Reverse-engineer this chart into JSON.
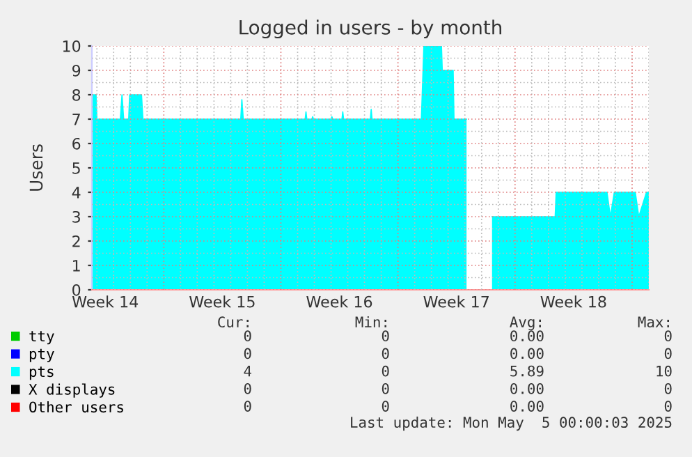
{
  "chart_data": {
    "type": "area",
    "title": "Logged in users - by month",
    "ylabel": "Users",
    "xlim": [
      "2025-04-01T16:48",
      "2025-05-05T00:00"
    ],
    "xticks": [
      {
        "value": "2025-04-02T12:00",
        "label": "Week 14"
      },
      {
        "value": "2025-04-09T12:00",
        "label": "Week 15"
      },
      {
        "value": "2025-04-16T12:00",
        "label": "Week 16"
      },
      {
        "value": "2025-04-23T12:00",
        "label": "Week 17"
      },
      {
        "value": "2025-04-30T12:00",
        "label": "Week 18"
      }
    ],
    "ylim": [
      0,
      10
    ],
    "yticks": [
      0,
      1,
      2,
      3,
      4,
      5,
      6,
      7,
      8,
      9,
      10
    ],
    "grid": true,
    "legend": "bottom",
    "series": [
      {
        "name": "tty",
        "color": "#00cc00"
      },
      {
        "name": "pty",
        "color": "#0000ff"
      },
      {
        "name": "pts",
        "color": "#00ffff",
        "x": [
          "2025-04-01T16:48",
          "2025-04-01T22:48",
          "2025-04-02T00:00",
          "2025-04-03T09:36",
          "2025-04-03T12:00",
          "2025-04-03T14:24",
          "2025-04-03T21:36",
          "2025-04-03T23:00",
          "2025-04-04T16:00",
          "2025-04-04T18:00",
          "2025-04-10T14:24",
          "2025-04-10T16:00",
          "2025-04-10T18:00",
          "2025-04-14T10:48",
          "2025-04-14T12:00",
          "2025-04-14T13:12",
          "2025-04-14T20:24",
          "2025-04-14T21:36",
          "2025-04-14T22:48",
          "2025-04-16T00:00",
          "2025-04-16T01:12",
          "2025-04-16T02:24",
          "2025-04-16T15:36",
          "2025-04-16T16:48",
          "2025-04-16T18:00",
          "2025-04-18T08:24",
          "2025-04-18T09:36",
          "2025-04-18T10:48",
          "2025-04-21T09:36",
          "2025-04-21T13:12",
          "2025-04-22T14:24",
          "2025-04-22T15:36",
          "2025-04-23T07:12",
          "2025-04-23T08:24",
          "2025-04-24T02:24",
          "2025-04-24T03:36",
          "2025-04-25T15:00",
          "2025-04-29T09:36",
          "2025-04-29T11:00",
          "2025-05-02T12:00",
          "2025-05-02T16:48",
          "2025-05-02T22:30",
          "2025-05-04T04:34",
          "2025-05-04T09:36",
          "2025-05-04T20:38",
          "2025-05-05T00:00"
        ],
        "values": [
          8,
          8,
          7,
          7,
          8,
          7,
          7,
          8,
          8,
          7,
          7,
          7.8,
          7,
          7,
          7.3,
          7,
          7,
          7.1,
          7,
          7,
          7.1,
          7,
          7,
          7.3,
          7,
          7,
          7.4,
          7,
          7,
          10,
          10,
          9,
          9,
          7,
          7,
          null,
          3,
          3,
          4,
          4,
          3,
          4,
          4,
          3,
          4,
          4
        ]
      },
      {
        "name": "X displays",
        "color": "#000000"
      },
      {
        "name": "Other users",
        "color": "#ff0000"
      }
    ],
    "annotations": [
      "Cur:",
      "Min:",
      "Avg:",
      "Max:",
      "0",
      "0",
      "0.00",
      "0",
      "0",
      "0",
      "0.00",
      "0",
      "4",
      "0",
      "5.89",
      "10",
      "0",
      "0",
      "0.00",
      "0",
      "0",
      "0",
      "0.00",
      "0",
      "Last update: Mon May  5 00:00:03 2025"
    ]
  }
}
